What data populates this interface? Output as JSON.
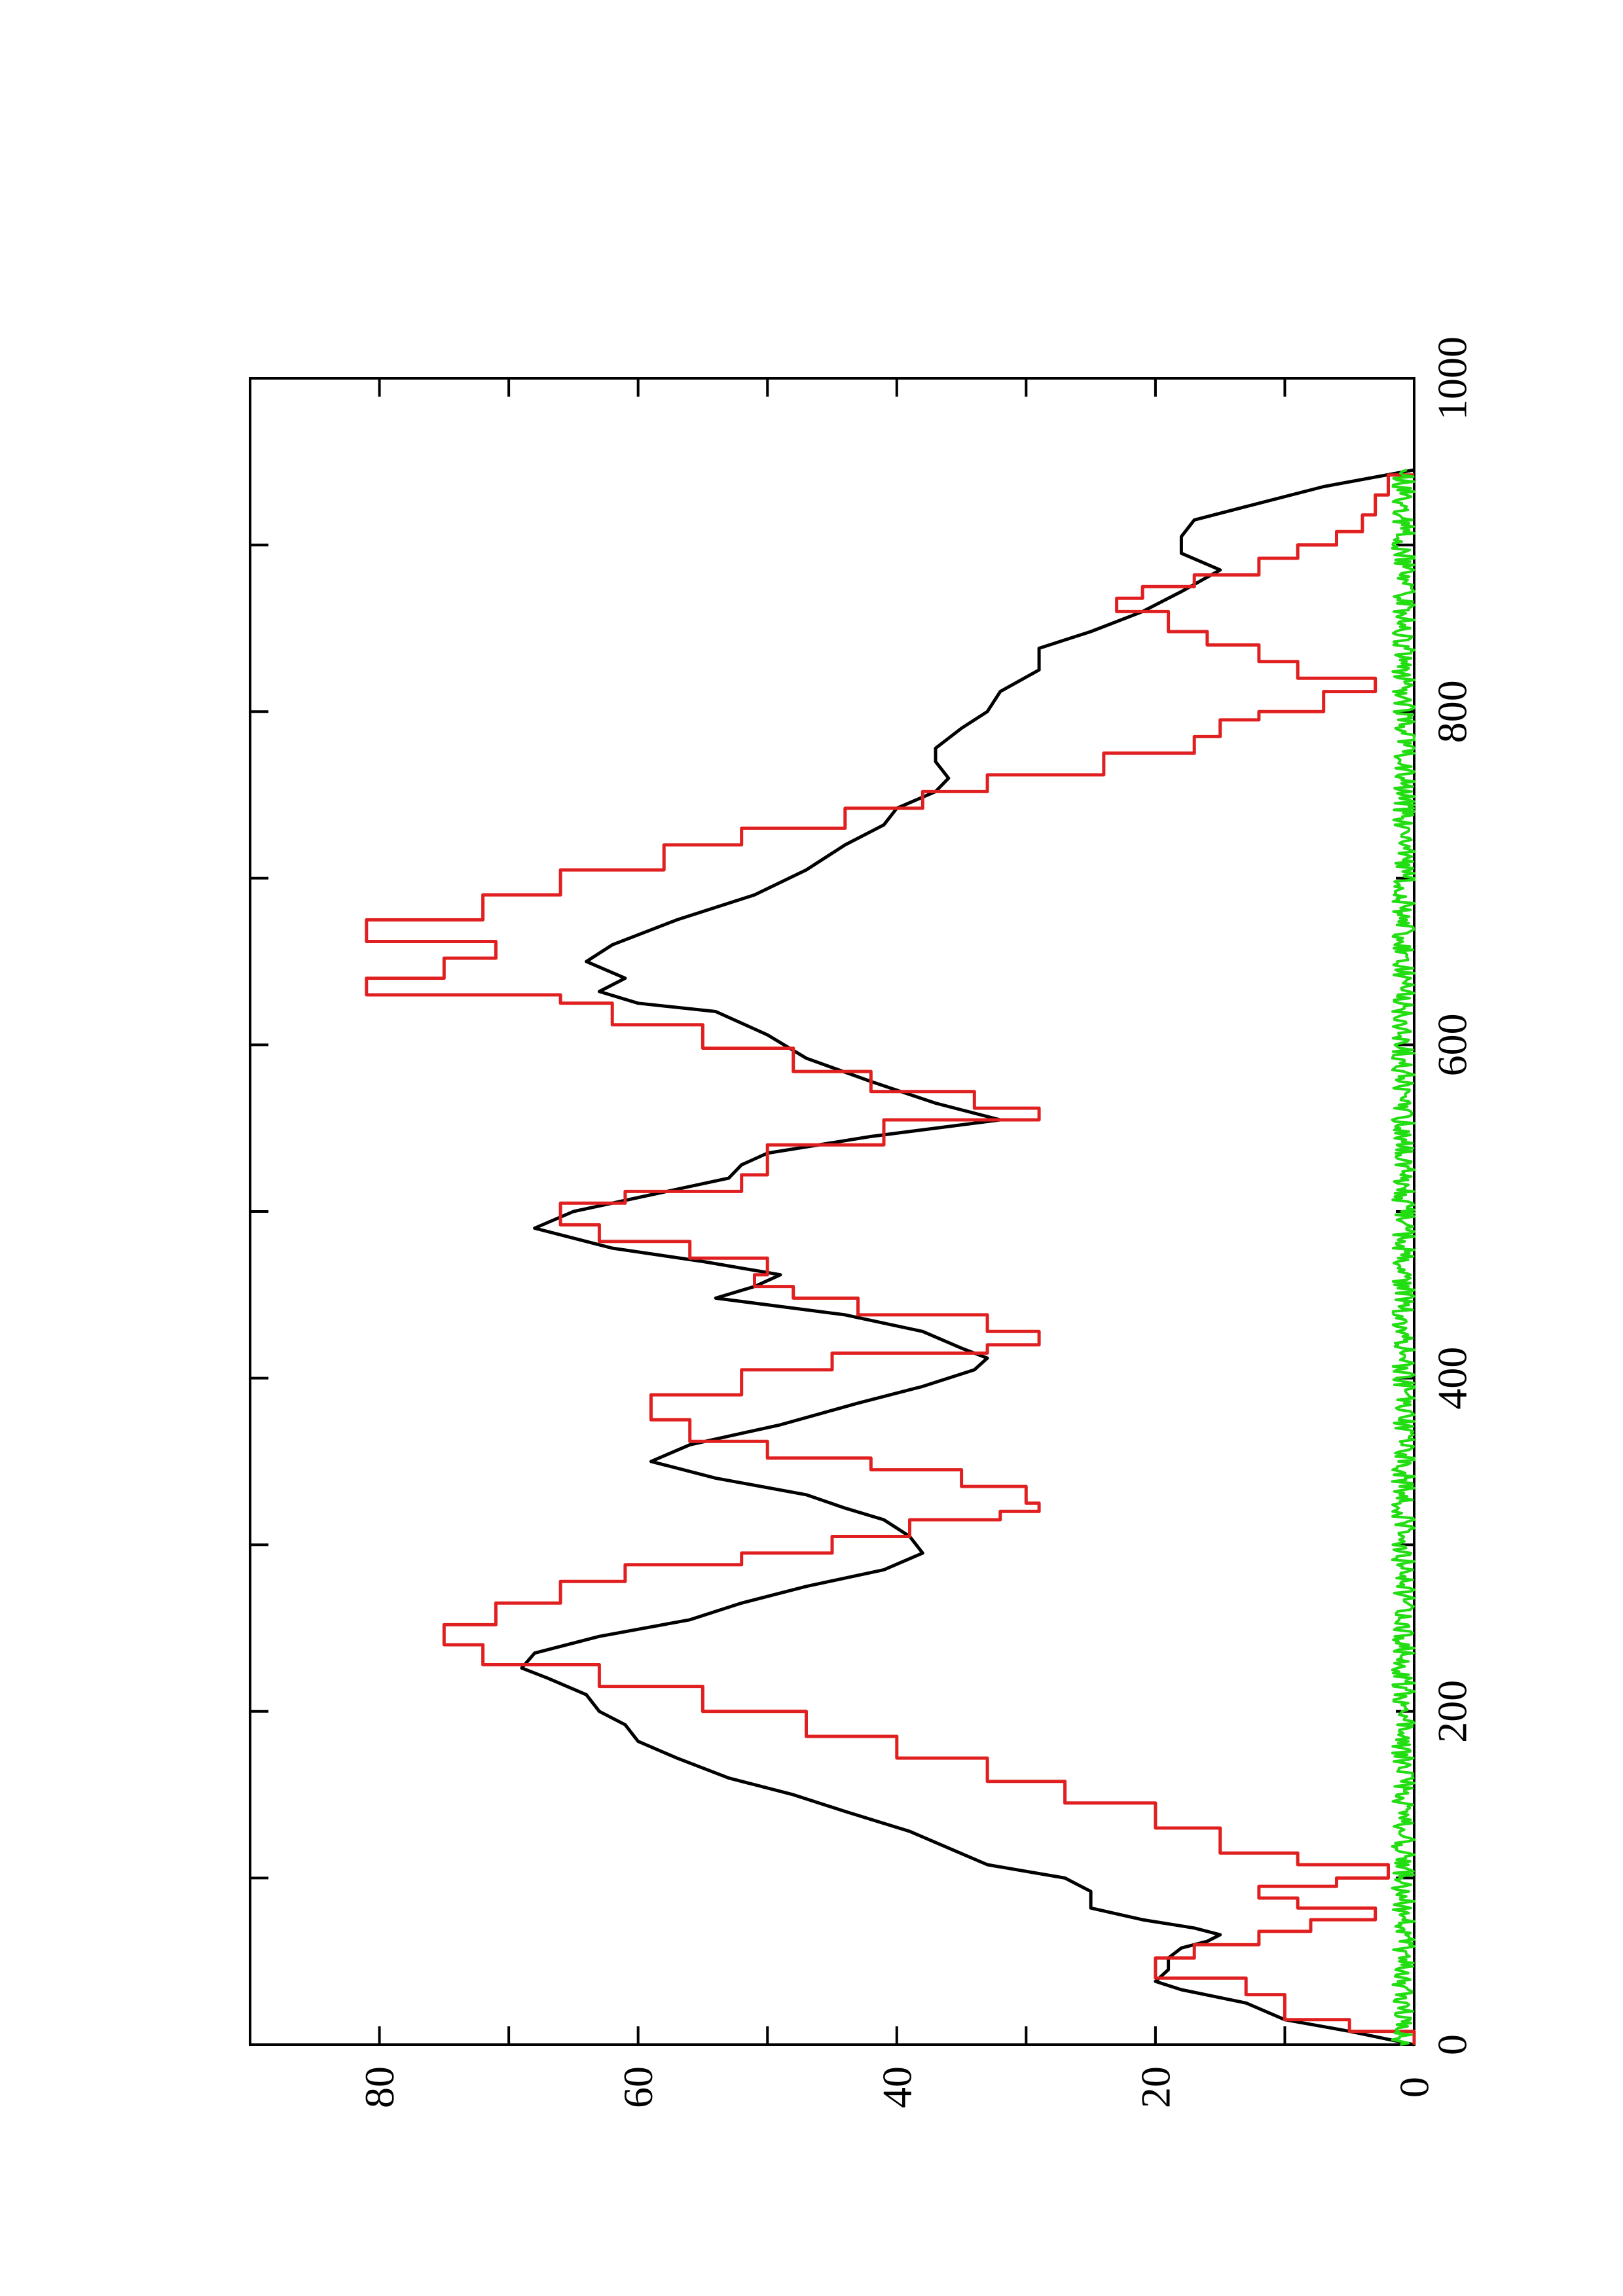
{
  "chart_data": {
    "type": "line",
    "orientation": "rotated-90-counterclockwise",
    "title": "",
    "xlabel": "",
    "ylabel": "",
    "xlim": [
      0,
      1000
    ],
    "ylim": [
      0,
      90
    ],
    "x_ticks": [
      0,
      200,
      400,
      600,
      800,
      1000
    ],
    "y_ticks": [
      0,
      20,
      40,
      60,
      80
    ],
    "x_minor_step": 100,
    "y_minor_step": 10,
    "grid": false,
    "legend": "none",
    "series": [
      {
        "color": "#000000",
        "style": "smooth",
        "points": [
          [
            0,
            0
          ],
          [
            8,
            5
          ],
          [
            15,
            10
          ],
          [
            25,
            13
          ],
          [
            33,
            18
          ],
          [
            38,
            20
          ],
          [
            45,
            19
          ],
          [
            52,
            19
          ],
          [
            58,
            18
          ],
          [
            62,
            16
          ],
          [
            66,
            15
          ],
          [
            70,
            17
          ],
          [
            75,
            21
          ],
          [
            82,
            25
          ],
          [
            92,
            25
          ],
          [
            100,
            27
          ],
          [
            108,
            33
          ],
          [
            118,
            36
          ],
          [
            128,
            39
          ],
          [
            140,
            44
          ],
          [
            150,
            48
          ],
          [
            160,
            53
          ],
          [
            172,
            57
          ],
          [
            182,
            60
          ],
          [
            192,
            61
          ],
          [
            200,
            63
          ],
          [
            210,
            64
          ],
          [
            220,
            67
          ],
          [
            226,
            69
          ],
          [
            235,
            68
          ],
          [
            245,
            63
          ],
          [
            255,
            56
          ],
          [
            265,
            52
          ],
          [
            275,
            47
          ],
          [
            285,
            41
          ],
          [
            295,
            38
          ],
          [
            305,
            39
          ],
          [
            315,
            41
          ],
          [
            322,
            44
          ],
          [
            330,
            47
          ],
          [
            340,
            54
          ],
          [
            350,
            59
          ],
          [
            360,
            56
          ],
          [
            372,
            49
          ],
          [
            385,
            43
          ],
          [
            395,
            38
          ],
          [
            405,
            34
          ],
          [
            412,
            33
          ],
          [
            418,
            35
          ],
          [
            428,
            38
          ],
          [
            438,
            44
          ],
          [
            448,
            54
          ],
          [
            455,
            51
          ],
          [
            462,
            49
          ],
          [
            470,
            55
          ],
          [
            478,
            62
          ],
          [
            490,
            68
          ],
          [
            500,
            65
          ],
          [
            510,
            59
          ],
          [
            520,
            53
          ],
          [
            528,
            52
          ],
          [
            535,
            50
          ],
          [
            545,
            42
          ],
          [
            555,
            32
          ],
          [
            565,
            37
          ],
          [
            578,
            42
          ],
          [
            592,
            47
          ],
          [
            606,
            50
          ],
          [
            620,
            54
          ],
          [
            625,
            60
          ],
          [
            632,
            63
          ],
          [
            640,
            61
          ],
          [
            650,
            64
          ],
          [
            660,
            62
          ],
          [
            675,
            57
          ],
          [
            690,
            51
          ],
          [
            705,
            47
          ],
          [
            720,
            44
          ],
          [
            732,
            41
          ],
          [
            742,
            40
          ],
          [
            752,
            37
          ],
          [
            760,
            36
          ],
          [
            770,
            37
          ],
          [
            778,
            37
          ],
          [
            790,
            35
          ],
          [
            800,
            33
          ],
          [
            812,
            32
          ],
          [
            825,
            29
          ],
          [
            838,
            29
          ],
          [
            848,
            25
          ],
          [
            860,
            21
          ],
          [
            872,
            18
          ],
          [
            885,
            15
          ],
          [
            895,
            18
          ],
          [
            905,
            18
          ],
          [
            915,
            17
          ],
          [
            925,
            12
          ],
          [
            935,
            7
          ],
          [
            945,
            0
          ]
        ]
      },
      {
        "color": "#e02020",
        "style": "step",
        "points": [
          [
            0,
            0
          ],
          [
            8,
            5
          ],
          [
            15,
            10
          ],
          [
            30,
            13
          ],
          [
            40,
            20
          ],
          [
            52,
            17
          ],
          [
            60,
            12
          ],
          [
            68,
            8
          ],
          [
            75,
            3
          ],
          [
            82,
            9
          ],
          [
            88,
            12
          ],
          [
            95,
            6
          ],
          [
            100,
            2
          ],
          [
            108,
            9
          ],
          [
            115,
            15
          ],
          [
            130,
            20
          ],
          [
            145,
            27
          ],
          [
            158,
            33
          ],
          [
            172,
            40
          ],
          [
            185,
            47
          ],
          [
            200,
            55
          ],
          [
            215,
            63
          ],
          [
            228,
            72
          ],
          [
            240,
            75
          ],
          [
            252,
            71
          ],
          [
            265,
            66
          ],
          [
            278,
            61
          ],
          [
            288,
            52
          ],
          [
            295,
            45
          ],
          [
            305,
            39
          ],
          [
            315,
            32
          ],
          [
            320,
            29
          ],
          [
            325,
            30
          ],
          [
            335,
            35
          ],
          [
            345,
            42
          ],
          [
            352,
            50
          ],
          [
            362,
            56
          ],
          [
            375,
            59
          ],
          [
            390,
            52
          ],
          [
            405,
            45
          ],
          [
            415,
            33
          ],
          [
            420,
            29
          ],
          [
            428,
            33
          ],
          [
            438,
            43
          ],
          [
            448,
            48
          ],
          [
            455,
            51
          ],
          [
            462,
            50
          ],
          [
            472,
            56
          ],
          [
            482,
            63
          ],
          [
            492,
            66
          ],
          [
            505,
            61
          ],
          [
            512,
            52
          ],
          [
            522,
            50
          ],
          [
            530,
            50
          ],
          [
            540,
            41
          ],
          [
            555,
            29
          ],
          [
            562,
            34
          ],
          [
            572,
            42
          ],
          [
            584,
            48
          ],
          [
            598,
            55
          ],
          [
            612,
            62
          ],
          [
            625,
            66
          ],
          [
            630,
            81
          ],
          [
            640,
            75
          ],
          [
            652,
            71
          ],
          [
            662,
            81
          ],
          [
            675,
            72
          ],
          [
            690,
            66
          ],
          [
            705,
            58
          ],
          [
            720,
            52
          ],
          [
            730,
            44
          ],
          [
            742,
            38
          ],
          [
            752,
            33
          ],
          [
            762,
            24
          ],
          [
            775,
            17
          ],
          [
            785,
            15
          ],
          [
            795,
            12
          ],
          [
            800,
            7
          ],
          [
            812,
            3
          ],
          [
            820,
            9
          ],
          [
            830,
            12
          ],
          [
            840,
            16
          ],
          [
            848,
            19
          ],
          [
            860,
            23
          ],
          [
            868,
            21
          ],
          [
            875,
            17
          ],
          [
            882,
            12
          ],
          [
            892,
            9
          ],
          [
            900,
            6
          ],
          [
            908,
            4
          ],
          [
            918,
            3
          ],
          [
            930,
            2
          ],
          [
            942,
            0
          ]
        ]
      },
      {
        "color": "#22dd11",
        "style": "noise",
        "range": [
          0,
          945
        ],
        "amplitude": 0.9,
        "baseline": 0.8
      }
    ]
  }
}
